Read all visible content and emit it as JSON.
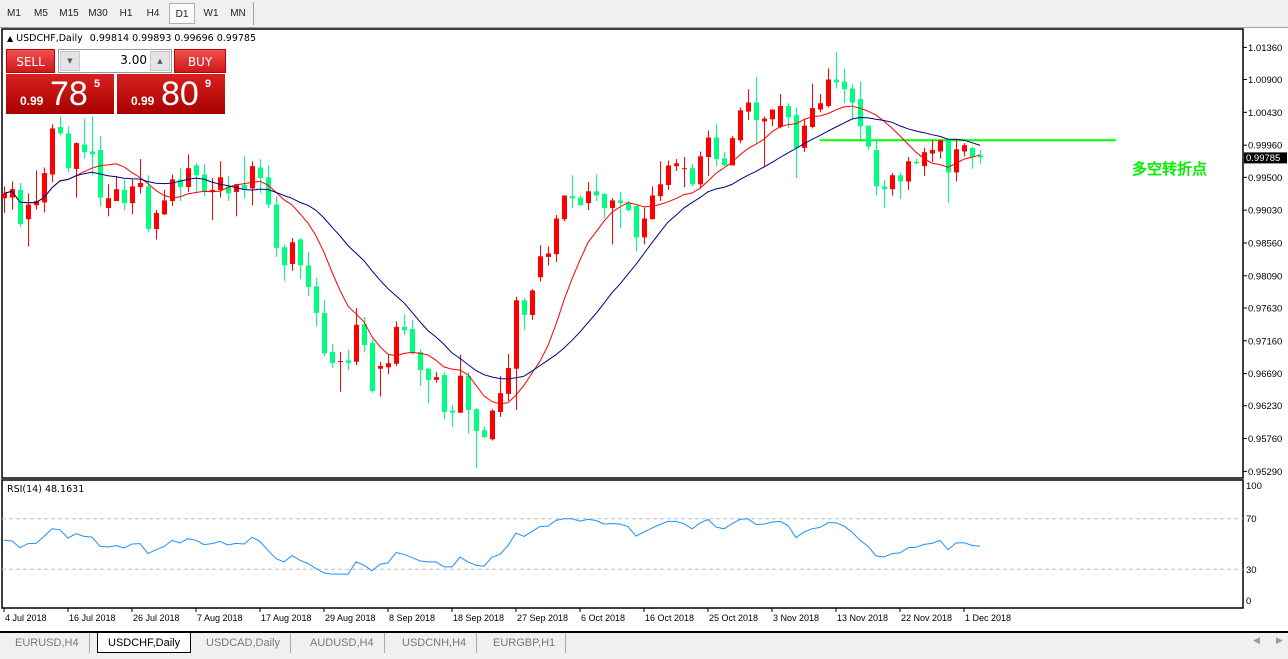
{
  "toolbar": {
    "timeframes": [
      "M1",
      "M5",
      "M15",
      "M30",
      "H1",
      "H4",
      "D1",
      "W1",
      "MN"
    ],
    "selected": "D1"
  },
  "header": {
    "symbol": "USDCHF,Daily",
    "ohlc": "0.99814 0.99893 0.99696 0.99785"
  },
  "trade_panel": {
    "sell_label": "SELL",
    "buy_label": "BUY",
    "lot": "3.00",
    "sell_price": {
      "prefix": "0.99",
      "big": "78",
      "sup": "5"
    },
    "buy_price": {
      "prefix": "0.99",
      "big": "80",
      "sup": "9"
    }
  },
  "annotation": "多空转折点",
  "rsi": {
    "label": "RSI(14) 48.1631"
  },
  "tabs": [
    {
      "label": "EURUSD,H4",
      "active": false
    },
    {
      "label": "USDCHF,Daily",
      "active": true
    },
    {
      "label": "USDCAD,Daily",
      "active": false
    },
    {
      "label": "AUDUSD,H4",
      "active": false
    },
    {
      "label": "USDCNH,H4",
      "active": false
    },
    {
      "label": "EURGBP,H1",
      "active": false
    }
  ],
  "colors": {
    "bull": "#ff0000",
    "bear": "#00ff80",
    "ma_fast": "#ff0000",
    "ma_slow": "#000080",
    "level": "#00ff00",
    "rsi": "#1e90ff",
    "annotation": "#00ee00"
  },
  "chart_data": [
    {
      "type": "candlestick",
      "symbol": "USDCHF",
      "timeframe": "Daily",
      "ylim": [
        0.9521,
        1.0158
      ],
      "y_ticks": [
        "1.01360",
        "1.00900",
        "1.00430",
        "0.99960",
        "0.99500",
        "0.99030",
        "0.98560",
        "0.98090",
        "0.97630",
        "0.97160",
        "0.96690",
        "0.96230",
        "0.95760",
        "0.95290"
      ],
      "current_price": "0.99785",
      "x_labels": [
        "4 Jul 2018",
        "16 Jul 2018",
        "26 Jul 2018",
        "7 Aug 2018",
        "17 Aug 2018",
        "29 Aug 2018",
        "8 Sep 2018",
        "18 Sep 2018",
        "27 Sep 2018",
        "6 Oct 2018",
        "16 Oct 2018",
        "25 Oct 2018",
        "3 Nov 2018",
        "13 Nov 2018",
        "22 Nov 2018",
        "1 Dec 2018"
      ],
      "label_every_bars": 8,
      "horizontal_level": {
        "price": 1.0003,
        "from_bar": 102,
        "to_bar": 139
      },
      "moving_averages": [
        "fast",
        "slow"
      ],
      "ohlc": [
        [
          0.992,
          0.9937,
          0.9899,
          0.9927
        ],
        [
          0.9921,
          0.9944,
          0.9904,
          0.9933
        ],
        [
          0.9932,
          0.9942,
          0.9879,
          0.9883
        ],
        [
          0.989,
          0.9927,
          0.9851,
          0.9911
        ],
        [
          0.991,
          0.996,
          0.9904,
          0.9916
        ],
        [
          0.9914,
          0.9964,
          0.99,
          0.9956
        ],
        [
          0.9954,
          1.0026,
          0.9943,
          1.002
        ],
        [
          1.0022,
          1.0037,
          1.001,
          1.0013
        ],
        [
          1.0013,
          1.0023,
          0.9957,
          0.9963
        ],
        [
          0.9962,
          1.0,
          0.9921,
          0.9999
        ],
        [
          0.9997,
          1.0034,
          0.9977,
          0.9986
        ],
        [
          0.9987,
          1.0037,
          0.9953,
          0.9983
        ],
        [
          0.9989,
          1.0009,
          0.9909,
          0.9921
        ],
        [
          0.9906,
          0.994,
          0.9894,
          0.992
        ],
        [
          0.9916,
          0.9952,
          0.9916,
          0.9933
        ],
        [
          0.9932,
          0.9947,
          0.9903,
          0.9913
        ],
        [
          0.9913,
          0.9947,
          0.9897,
          0.9937
        ],
        [
          0.9936,
          0.9976,
          0.9927,
          0.9942
        ],
        [
          0.9937,
          0.9953,
          0.9871,
          0.9876
        ],
        [
          0.9876,
          0.9903,
          0.9861,
          0.9899
        ],
        [
          0.9897,
          0.9932,
          0.9896,
          0.9917
        ],
        [
          0.9916,
          0.9954,
          0.9909,
          0.9947
        ],
        [
          0.9947,
          0.9963,
          0.9916,
          0.9936
        ],
        [
          0.9936,
          0.9983,
          0.9929,
          0.9963
        ],
        [
          0.9967,
          0.997,
          0.9927,
          0.9953
        ],
        [
          0.9954,
          0.9969,
          0.9923,
          0.9929
        ],
        [
          0.9929,
          0.9949,
          0.9889,
          0.9932
        ],
        [
          0.9932,
          0.9973,
          0.9921,
          0.995
        ],
        [
          0.9937,
          0.9952,
          0.9916,
          0.9927
        ],
        [
          0.9929,
          0.994,
          0.9894,
          0.994
        ],
        [
          0.9939,
          0.998,
          0.992,
          0.9932
        ],
        [
          0.9934,
          0.9973,
          0.991,
          0.9966
        ],
        [
          0.9964,
          0.9976,
          0.9927,
          0.9949
        ],
        [
          0.995,
          0.9967,
          0.9906,
          0.9911
        ],
        [
          0.9911,
          0.9923,
          0.9836,
          0.9849
        ],
        [
          0.985,
          0.9854,
          0.9801,
          0.9824
        ],
        [
          0.9826,
          0.9863,
          0.9816,
          0.9857
        ],
        [
          0.9861,
          0.9863,
          0.9804,
          0.9824
        ],
        [
          0.9824,
          0.9843,
          0.978,
          0.9793
        ],
        [
          0.9794,
          0.9806,
          0.9737,
          0.9756
        ],
        [
          0.9756,
          0.9774,
          0.9694,
          0.9698
        ],
        [
          0.97,
          0.9711,
          0.9677,
          0.9684
        ],
        [
          0.9686,
          0.97,
          0.9643,
          0.9687
        ],
        [
          0.9688,
          0.9703,
          0.9674,
          0.9684
        ],
        [
          0.9686,
          0.9763,
          0.9681,
          0.9739
        ],
        [
          0.974,
          0.975,
          0.97,
          0.971
        ],
        [
          0.9713,
          0.9718,
          0.9641,
          0.9644
        ],
        [
          0.9676,
          0.9686,
          0.9636,
          0.968
        ],
        [
          0.9678,
          0.9696,
          0.9668,
          0.9684
        ],
        [
          0.9683,
          0.9744,
          0.968,
          0.9736
        ],
        [
          0.9736,
          0.9754,
          0.9724,
          0.9731
        ],
        [
          0.9733,
          0.9746,
          0.9696,
          0.9698
        ],
        [
          0.97,
          0.9704,
          0.9651,
          0.9674
        ],
        [
          0.9676,
          0.9677,
          0.9627,
          0.966
        ],
        [
          0.966,
          0.9671,
          0.9656,
          0.9664
        ],
        [
          0.9667,
          0.9671,
          0.9604,
          0.9614
        ],
        [
          0.9616,
          0.9624,
          0.9593,
          0.9613
        ],
        [
          0.9613,
          0.9696,
          0.9613,
          0.9666
        ],
        [
          0.9666,
          0.9671,
          0.9583,
          0.9617
        ],
        [
          0.9618,
          0.962,
          0.9534,
          0.9587
        ],
        [
          0.9588,
          0.9593,
          0.9577,
          0.9578
        ],
        [
          0.9575,
          0.9618,
          0.9573,
          0.9616
        ],
        [
          0.9614,
          0.9666,
          0.9607,
          0.9641
        ],
        [
          0.964,
          0.9697,
          0.963,
          0.9677
        ],
        [
          0.9676,
          0.9779,
          0.9617,
          0.9774
        ],
        [
          0.9774,
          0.9777,
          0.9731,
          0.9753
        ],
        [
          0.9753,
          0.979,
          0.9746,
          0.9788
        ],
        [
          0.9807,
          0.9853,
          0.9801,
          0.9837
        ],
        [
          0.9836,
          0.9851,
          0.9824,
          0.9841
        ],
        [
          0.984,
          0.9896,
          0.9829,
          0.9891
        ],
        [
          0.989,
          0.9924,
          0.9887,
          0.9924
        ],
        [
          0.9923,
          0.9953,
          0.9906,
          0.992
        ],
        [
          0.9921,
          0.9924,
          0.991,
          0.991
        ],
        [
          0.9913,
          0.9943,
          0.9903,
          0.993
        ],
        [
          0.993,
          0.9954,
          0.9916,
          0.9924
        ],
        [
          0.9926,
          0.9927,
          0.9891,
          0.9906
        ],
        [
          0.9906,
          0.992,
          0.9854,
          0.9917
        ],
        [
          0.9917,
          0.9929,
          0.9877,
          0.9913
        ],
        [
          0.9914,
          0.9916,
          0.9901,
          0.9903
        ],
        [
          0.9909,
          0.991,
          0.9844,
          0.9864
        ],
        [
          0.9864,
          0.9907,
          0.9854,
          0.9891
        ],
        [
          0.989,
          0.9937,
          0.989,
          0.9924
        ],
        [
          0.9923,
          0.9973,
          0.9916,
          0.994
        ],
        [
          0.9939,
          0.9974,
          0.9932,
          0.9967
        ],
        [
          0.9966,
          0.9976,
          0.9959,
          0.997
        ],
        [
          0.9962,
          0.9979,
          0.9936,
          0.9963
        ],
        [
          0.9963,
          0.9969,
          0.9937,
          0.994
        ],
        [
          0.994,
          0.9987,
          0.9934,
          0.998
        ],
        [
          0.9979,
          1.0017,
          0.9952,
          1.0007
        ],
        [
          1.0007,
          1.0026,
          0.9966,
          0.9976
        ],
        [
          0.9977,
          0.9986,
          0.9966,
          0.9967
        ],
        [
          0.9967,
          1.0009,
          0.9967,
          1.0006
        ],
        [
          1.0003,
          1.005,
          0.9999,
          1.0046
        ],
        [
          1.0044,
          1.0076,
          1.0032,
          1.0057
        ],
        [
          1.0057,
          1.0094,
          0.9997,
          1.0032
        ],
        [
          1.003,
          1.0037,
          0.9964,
          1.0034
        ],
        [
          1.0033,
          1.0047,
          1.0023,
          1.0047
        ],
        [
          1.0022,
          1.0069,
          1.002,
          1.0052
        ],
        [
          1.0052,
          1.0056,
          1.002,
          1.0036
        ],
        [
          1.0039,
          1.005,
          0.9949,
          0.9992
        ],
        [
          0.9992,
          1.0034,
          0.9986,
          1.0024
        ],
        [
          1.0022,
          1.0084,
          1.002,
          1.0049
        ],
        [
          1.0047,
          1.0069,
          1.0043,
          1.0056
        ],
        [
          1.0052,
          1.0106,
          1.005,
          1.009
        ],
        [
          1.009,
          1.0129,
          1.0077,
          1.0086
        ],
        [
          1.0087,
          1.0105,
          1.0056,
          1.0076
        ],
        [
          1.0077,
          1.0083,
          1.0033,
          1.0057
        ],
        [
          1.0062,
          1.0087,
          1.0004,
          1.0023
        ],
        [
          1.0024,
          1.0024,
          0.9989,
          0.9994
        ],
        [
          0.9989,
          1.0004,
          0.9924,
          0.9937
        ],
        [
          0.9937,
          0.9946,
          0.9906,
          0.9933
        ],
        [
          0.9933,
          0.9956,
          0.9924,
          0.9953
        ],
        [
          0.9953,
          0.9957,
          0.9919,
          0.9944
        ],
        [
          0.9944,
          0.9979,
          0.9932,
          0.9973
        ],
        [
          0.9972,
          0.9977,
          0.9969,
          0.997
        ],
        [
          0.9966,
          0.9992,
          0.9952,
          0.9986
        ],
        [
          0.9984,
          1.0003,
          0.9972,
          0.9989
        ],
        [
          0.9987,
          1.0003,
          0.9977,
          1.0003
        ],
        [
          1.0003,
          1.0003,
          0.9913,
          0.9957
        ],
        [
          0.9957,
          1.0003,
          0.9944,
          0.999
        ],
        [
          0.9987,
          0.9999,
          0.998,
          0.9996
        ],
        [
          0.9992,
          0.9994,
          0.9962,
          0.9979
        ],
        [
          0.99814,
          0.99893,
          0.99696,
          0.99785
        ]
      ]
    },
    {
      "type": "line",
      "indicator": "RSI(14)",
      "ylim": [
        0,
        100
      ],
      "levels": [
        70,
        30
      ],
      "y_ticks": [
        "100",
        "70",
        "30",
        "0"
      ],
      "values": [
        52.9,
        52.4,
        47.1,
        50.3,
        50.5,
        56,
        62.1,
        61.3,
        54.7,
        58.2,
        56,
        55.5,
        48.2,
        47.6,
        48.7,
        46.8,
        50,
        50.3,
        42.4,
        45.5,
        47.9,
        52.9,
        50.8,
        54.2,
        52.9,
        49.5,
        50.3,
        52.1,
        49.2,
        50.5,
        50,
        55.3,
        52.1,
        45,
        38.4,
        35.8,
        40.8,
        37.1,
        34.5,
        30.5,
        27.1,
        26.1,
        26.1,
        26.1,
        35.8,
        33.2,
        28.7,
        34,
        35,
        43.2,
        41.8,
        39.2,
        36.6,
        35.8,
        35.8,
        31.8,
        31.8,
        39.7,
        35.8,
        33.2,
        32.4,
        39.7,
        41.8,
        48.9,
        58.7,
        56,
        60,
        63.9,
        64.2,
        68.7,
        70,
        70,
        68.2,
        69.5,
        68.7,
        65.8,
        66.3,
        65.8,
        63.9,
        56.3,
        59.5,
        62.6,
        65.5,
        67.9,
        67.9,
        66.1,
        62.1,
        66.6,
        69.5,
        63.4,
        62.1,
        66.1,
        69.5,
        70,
        65.5,
        65.8,
        67.4,
        67.9,
        64.7,
        55,
        59.5,
        62.1,
        63.2,
        66.8,
        66.8,
        64.2,
        59.5,
        52.9,
        48.2,
        40.5,
        39.7,
        42.4,
        42.9,
        47.1,
        47.4,
        49.7,
        50.5,
        52.9,
        45.5,
        50.8,
        51,
        48.9,
        48.16
      ]
    }
  ]
}
